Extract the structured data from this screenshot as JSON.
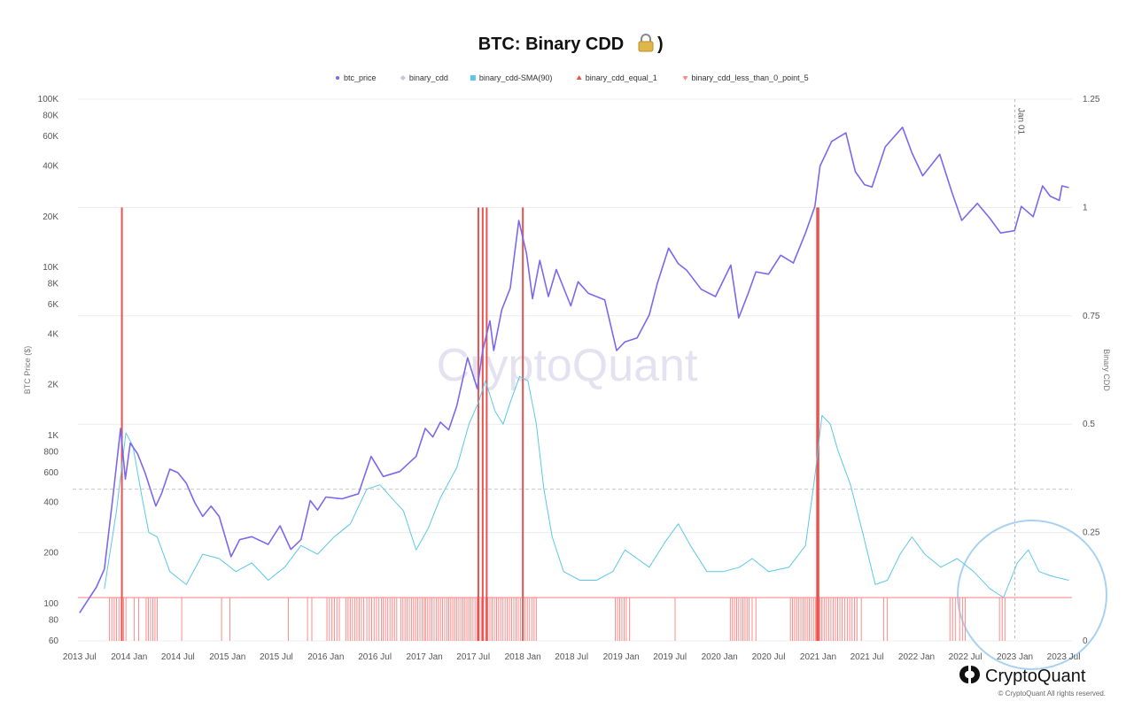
{
  "title": "BTC: Binary CDD",
  "title_icon": "lock-icon",
  "legend": [
    {
      "label": "btc_price",
      "color": "#7b68ee",
      "marker": "dot",
      "muted": false
    },
    {
      "label": "binary_cdd",
      "color": "#c7c7d6",
      "marker": "diamond",
      "muted": true
    },
    {
      "label": "binary_cdd-SMA(90)",
      "color": "#5bc8e8",
      "marker": "square",
      "muted": false
    },
    {
      "label": "binary_cdd_equal_1",
      "color": "#e8534f",
      "marker": "triangle-up",
      "muted": false
    },
    {
      "label": "binary_cdd_less_than_0_point_5",
      "color": "#ff8a8a",
      "marker": "triangle-down",
      "muted": false
    }
  ],
  "axes": {
    "left_title": "BTC Price ($)",
    "right_title": "Binary CDD",
    "left_ticks": [
      {
        "value": 100000,
        "label": "100K"
      },
      {
        "value": 80000,
        "label": "80K"
      },
      {
        "value": 60000,
        "label": "60K"
      },
      {
        "value": 40000,
        "label": "40K"
      },
      {
        "value": 20000,
        "label": "20K"
      },
      {
        "value": 10000,
        "label": "10K"
      },
      {
        "value": 8000,
        "label": "8K"
      },
      {
        "value": 6000,
        "label": "6K"
      },
      {
        "value": 4000,
        "label": "4K"
      },
      {
        "value": 2000,
        "label": "2K"
      },
      {
        "value": 1000,
        "label": "1K"
      },
      {
        "value": 800,
        "label": "800"
      },
      {
        "value": 600,
        "label": "600"
      },
      {
        "value": 400,
        "label": "400"
      },
      {
        "value": 200,
        "label": "200"
      },
      {
        "value": 100,
        "label": "100"
      },
      {
        "value": 80,
        "label": "80"
      },
      {
        "value": 60,
        "label": "60"
      }
    ],
    "right_ticks": [
      {
        "value": 1.25,
        "label": "1.25"
      },
      {
        "value": 1,
        "label": "1"
      },
      {
        "value": 0.75,
        "label": "0.75"
      },
      {
        "value": 0.5,
        "label": "0.5"
      },
      {
        "value": 0.25,
        "label": "0.25"
      },
      {
        "value": 0,
        "label": "0"
      }
    ],
    "x_ticks": [
      {
        "date": "2013-07-01",
        "label": "2013 Jul"
      },
      {
        "date": "2014-01-01",
        "label": "2014 Jan"
      },
      {
        "date": "2014-07-01",
        "label": "2014 Jul"
      },
      {
        "date": "2015-01-01",
        "label": "2015 Jan"
      },
      {
        "date": "2015-07-01",
        "label": "2015 Jul"
      },
      {
        "date": "2016-01-01",
        "label": "2016 Jan"
      },
      {
        "date": "2016-07-01",
        "label": "2016 Jul"
      },
      {
        "date": "2017-01-01",
        "label": "2017 Jan"
      },
      {
        "date": "2017-07-01",
        "label": "2017 Jul"
      },
      {
        "date": "2018-01-01",
        "label": "2018 Jan"
      },
      {
        "date": "2018-07-01",
        "label": "2018 Jul"
      },
      {
        "date": "2019-01-01",
        "label": "2019 Jan"
      },
      {
        "date": "2019-07-01",
        "label": "2019 Jul"
      },
      {
        "date": "2020-01-01",
        "label": "2020 Jan"
      },
      {
        "date": "2020-07-01",
        "label": "2020 Jul"
      },
      {
        "date": "2021-01-01",
        "label": "2021 Jan"
      },
      {
        "date": "2021-07-01",
        "label": "2021 Jul"
      },
      {
        "date": "2022-01-01",
        "label": "2022 Jan"
      },
      {
        "date": "2022-07-01",
        "label": "2022 Jul"
      },
      {
        "date": "2023-01-01",
        "label": "2023 Jan"
      },
      {
        "date": "2023-07-01",
        "label": "2023 Jul"
      }
    ],
    "crosshair_label": "Jan 01",
    "crosshair_date": "2023-01-01"
  },
  "watermark": "CryptoQuant",
  "brand": {
    "name": "CryptoQuant",
    "copyright": "© CryptoQuant All rights reserved."
  },
  "chart_data": {
    "type": "line",
    "x_range": [
      "2013-06-25",
      "2023-08-01"
    ],
    "left_scale": "log",
    "ylim_left": [
      60,
      100000
    ],
    "ylim_right": [
      0,
      1.25
    ],
    "grid": true,
    "legend_position": "top",
    "series": [
      {
        "name": "btc_price",
        "axis": "left",
        "color": "#7b68ee",
        "points": [
          [
            "2013-07-01",
            88
          ],
          [
            "2013-08-01",
            105
          ],
          [
            "2013-09-01",
            125
          ],
          [
            "2013-10-01",
            160
          ],
          [
            "2013-11-01",
            420
          ],
          [
            "2013-11-30",
            1100
          ],
          [
            "2013-12-18",
            550
          ],
          [
            "2014-01-05",
            900
          ],
          [
            "2014-02-01",
            780
          ],
          [
            "2014-03-01",
            600
          ],
          [
            "2014-04-10",
            380
          ],
          [
            "2014-05-01",
            450
          ],
          [
            "2014-06-01",
            630
          ],
          [
            "2014-07-01",
            600
          ],
          [
            "2014-08-01",
            520
          ],
          [
            "2014-09-01",
            400
          ],
          [
            "2014-10-01",
            330
          ],
          [
            "2014-11-01",
            380
          ],
          [
            "2014-12-01",
            330
          ],
          [
            "2015-01-14",
            190
          ],
          [
            "2015-02-15",
            240
          ],
          [
            "2015-04-01",
            250
          ],
          [
            "2015-06-01",
            225
          ],
          [
            "2015-07-15",
            290
          ],
          [
            "2015-08-24",
            210
          ],
          [
            "2015-10-01",
            240
          ],
          [
            "2015-11-04",
            410
          ],
          [
            "2015-12-01",
            360
          ],
          [
            "2016-01-01",
            430
          ],
          [
            "2016-03-01",
            420
          ],
          [
            "2016-05-01",
            450
          ],
          [
            "2016-06-17",
            750
          ],
          [
            "2016-08-01",
            570
          ],
          [
            "2016-10-01",
            610
          ],
          [
            "2016-12-01",
            750
          ],
          [
            "2017-01-04",
            1100
          ],
          [
            "2017-02-01",
            980
          ],
          [
            "2017-03-01",
            1200
          ],
          [
            "2017-04-01",
            1080
          ],
          [
            "2017-05-01",
            1500
          ],
          [
            "2017-06-10",
            2900
          ],
          [
            "2017-07-16",
            1900
          ],
          [
            "2017-08-05",
            3200
          ],
          [
            "2017-09-01",
            4800
          ],
          [
            "2017-09-15",
            3200
          ],
          [
            "2017-10-15",
            5600
          ],
          [
            "2017-11-15",
            7500
          ],
          [
            "2017-12-17",
            19000
          ],
          [
            "2018-01-15",
            12000
          ],
          [
            "2018-02-06",
            6500
          ],
          [
            "2018-03-05",
            11000
          ],
          [
            "2018-04-06",
            6700
          ],
          [
            "2018-05-05",
            9700
          ],
          [
            "2018-06-28",
            5900
          ],
          [
            "2018-07-25",
            8200
          ],
          [
            "2018-09-01",
            7000
          ],
          [
            "2018-11-01",
            6400
          ],
          [
            "2018-12-15",
            3200
          ],
          [
            "2019-01-15",
            3600
          ],
          [
            "2019-03-01",
            3800
          ],
          [
            "2019-04-15",
            5200
          ],
          [
            "2019-05-15",
            8000
          ],
          [
            "2019-06-26",
            13000
          ],
          [
            "2019-08-01",
            10500
          ],
          [
            "2019-09-01",
            9600
          ],
          [
            "2019-10-25",
            7400
          ],
          [
            "2019-12-17",
            6700
          ],
          [
            "2020-02-12",
            10300
          ],
          [
            "2020-03-12",
            5000
          ],
          [
            "2020-04-15",
            6900
          ],
          [
            "2020-05-15",
            9400
          ],
          [
            "2020-07-01",
            9100
          ],
          [
            "2020-08-15",
            11800
          ],
          [
            "2020-10-01",
            10600
          ],
          [
            "2020-11-15",
            16000
          ],
          [
            "2020-12-20",
            23000
          ],
          [
            "2021-01-08",
            40000
          ],
          [
            "2021-02-20",
            56000
          ],
          [
            "2021-04-14",
            63000
          ],
          [
            "2021-05-19",
            37000
          ],
          [
            "2021-06-22",
            31000
          ],
          [
            "2021-07-20",
            30000
          ],
          [
            "2021-09-07",
            52000
          ],
          [
            "2021-11-10",
            68000
          ],
          [
            "2021-12-15",
            48000
          ],
          [
            "2022-01-24",
            35000
          ],
          [
            "2022-03-28",
            47000
          ],
          [
            "2022-05-12",
            28000
          ],
          [
            "2022-06-18",
            19000
          ],
          [
            "2022-08-15",
            24000
          ],
          [
            "2022-10-01",
            19500
          ],
          [
            "2022-11-09",
            16000
          ],
          [
            "2022-12-31",
            16500
          ],
          [
            "2023-01-25",
            23000
          ],
          [
            "2023-03-10",
            20000
          ],
          [
            "2023-04-14",
            30500
          ],
          [
            "2023-05-12",
            26500
          ],
          [
            "2023-06-15",
            25000
          ],
          [
            "2023-06-25",
            30500
          ],
          [
            "2023-07-20",
            29800
          ]
        ]
      },
      {
        "name": "binary_cdd-SMA(90)",
        "axis": "right",
        "color": "#5bc8e8",
        "points": [
          [
            "2013-10-01",
            0.12
          ],
          [
            "2013-11-15",
            0.3
          ],
          [
            "2013-12-20",
            0.48
          ],
          [
            "2014-01-15",
            0.45
          ],
          [
            "2014-02-15",
            0.34
          ],
          [
            "2014-03-15",
            0.25
          ],
          [
            "2014-04-15",
            0.24
          ],
          [
            "2014-06-01",
            0.16
          ],
          [
            "2014-08-01",
            0.13
          ],
          [
            "2014-10-01",
            0.2
          ],
          [
            "2014-12-01",
            0.19
          ],
          [
            "2015-02-01",
            0.16
          ],
          [
            "2015-04-01",
            0.18
          ],
          [
            "2015-06-01",
            0.14
          ],
          [
            "2015-08-01",
            0.17
          ],
          [
            "2015-10-01",
            0.22
          ],
          [
            "2015-12-01",
            0.2
          ],
          [
            "2016-02-01",
            0.24
          ],
          [
            "2016-04-01",
            0.27
          ],
          [
            "2016-06-01",
            0.35
          ],
          [
            "2016-07-20",
            0.36
          ],
          [
            "2016-09-01",
            0.33
          ],
          [
            "2016-10-15",
            0.3
          ],
          [
            "2016-12-01",
            0.21
          ],
          [
            "2017-01-15",
            0.26
          ],
          [
            "2017-03-01",
            0.33
          ],
          [
            "2017-05-01",
            0.4
          ],
          [
            "2017-06-15",
            0.5
          ],
          [
            "2017-07-20",
            0.55
          ],
          [
            "2017-08-15",
            0.6
          ],
          [
            "2017-09-20",
            0.53
          ],
          [
            "2017-10-20",
            0.5
          ],
          [
            "2017-11-15",
            0.55
          ],
          [
            "2017-12-20",
            0.61
          ],
          [
            "2018-01-20",
            0.6
          ],
          [
            "2018-02-20",
            0.5
          ],
          [
            "2018-03-20",
            0.35
          ],
          [
            "2018-04-20",
            0.24
          ],
          [
            "2018-06-01",
            0.16
          ],
          [
            "2018-08-01",
            0.14
          ],
          [
            "2018-10-01",
            0.14
          ],
          [
            "2018-12-01",
            0.16
          ],
          [
            "2019-01-15",
            0.21
          ],
          [
            "2019-03-01",
            0.19
          ],
          [
            "2019-04-15",
            0.17
          ],
          [
            "2019-06-15",
            0.23
          ],
          [
            "2019-08-01",
            0.27
          ],
          [
            "2019-09-15",
            0.22
          ],
          [
            "2019-11-15",
            0.16
          ],
          [
            "2020-01-15",
            0.16
          ],
          [
            "2020-03-15",
            0.17
          ],
          [
            "2020-05-01",
            0.19
          ],
          [
            "2020-07-01",
            0.16
          ],
          [
            "2020-09-15",
            0.17
          ],
          [
            "2020-11-15",
            0.22
          ],
          [
            "2020-12-20",
            0.38
          ],
          [
            "2021-01-15",
            0.52
          ],
          [
            "2021-02-15",
            0.5
          ],
          [
            "2021-03-15",
            0.44
          ],
          [
            "2021-05-01",
            0.36
          ],
          [
            "2021-06-15",
            0.25
          ],
          [
            "2021-08-01",
            0.13
          ],
          [
            "2021-09-15",
            0.14
          ],
          [
            "2021-11-01",
            0.2
          ],
          [
            "2021-12-15",
            0.24
          ],
          [
            "2022-02-01",
            0.2
          ],
          [
            "2022-04-01",
            0.17
          ],
          [
            "2022-06-01",
            0.19
          ],
          [
            "2022-08-01",
            0.16
          ],
          [
            "2022-10-01",
            0.12
          ],
          [
            "2022-11-20",
            0.1
          ],
          [
            "2023-01-10",
            0.18
          ],
          [
            "2023-02-20",
            0.21
          ],
          [
            "2023-04-01",
            0.16
          ],
          [
            "2023-05-15",
            0.15
          ],
          [
            "2023-07-20",
            0.14
          ]
        ]
      },
      {
        "name": "binary_cdd_equal_1",
        "axis": "right",
        "color": "#e8534f",
        "points": [
          [
            "2013-12-05",
            1
          ],
          [
            "2017-07-20",
            1
          ],
          [
            "2017-08-05",
            1
          ],
          [
            "2017-08-20",
            1
          ],
          [
            "2018-01-01",
            1
          ],
          [
            "2020-12-28",
            1
          ],
          [
            "2021-01-02",
            1
          ]
        ]
      },
      {
        "name": "binary_cdd_less_than_0_point_5",
        "axis": "right",
        "color": "#ff8a8a",
        "baseline_value": 0.1,
        "spike_ranges": [
          [
            "2013-10-20",
            "2013-12-20"
          ],
          [
            "2014-01-20",
            "2014-02-05"
          ],
          [
            "2014-03-05",
            "2014-04-15"
          ],
          [
            "2014-07-15",
            "2014-07-25"
          ],
          [
            "2014-12-10",
            "2014-12-20"
          ],
          [
            "2015-01-10",
            "2015-01-20"
          ],
          [
            "2015-08-15",
            "2015-08-25"
          ],
          [
            "2015-10-25",
            "2015-11-10"
          ],
          [
            "2016-01-05",
            "2016-02-20"
          ],
          [
            "2016-03-15",
            "2016-05-20"
          ],
          [
            "2016-06-01",
            "2016-07-25"
          ],
          [
            "2016-08-01",
            "2016-09-20"
          ],
          [
            "2016-10-05",
            "2016-12-31"
          ],
          [
            "2017-01-05",
            "2017-03-25"
          ],
          [
            "2017-04-01",
            "2017-07-15"
          ],
          [
            "2017-07-15",
            "2017-09-25"
          ],
          [
            "2017-09-25",
            "2017-12-31"
          ],
          [
            "2018-01-01",
            "2018-02-20"
          ],
          [
            "2018-12-10",
            "2019-01-20"
          ],
          [
            "2019-02-01",
            "2019-02-10"
          ],
          [
            "2019-07-20",
            "2019-07-30"
          ],
          [
            "2020-02-10",
            "2020-04-20"
          ],
          [
            "2020-05-01",
            "2020-05-15"
          ],
          [
            "2020-09-20",
            "2021-01-15"
          ],
          [
            "2021-01-15",
            "2021-03-31"
          ],
          [
            "2021-04-10",
            "2021-05-25"
          ],
          [
            "2021-06-10",
            "2021-06-20"
          ],
          [
            "2021-09-01",
            "2021-09-15"
          ],
          [
            "2022-05-05",
            "2022-05-25"
          ],
          [
            "2022-06-10",
            "2022-07-01"
          ],
          [
            "2022-11-05",
            "2022-11-25"
          ]
        ]
      }
    ]
  }
}
